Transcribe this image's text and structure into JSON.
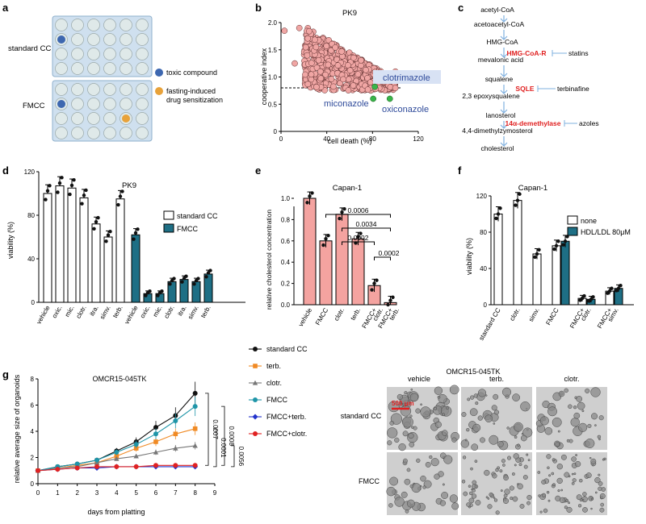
{
  "panel_a": {
    "letter": "a",
    "label_standard": "standard CC",
    "label_fmcc": "FMCC",
    "legend_toxic": "toxic compound",
    "legend_fasting_1": "fasting-induced",
    "legend_fasting_2": "drug sensitization",
    "colors": {
      "well": "#dfe9e9",
      "plate": "#cfe0ef",
      "toxic": "#3d67b0",
      "fasting": "#e8a23a"
    }
  },
  "panel_b": {
    "letter": "b",
    "chart_data": {
      "type": "scatter",
      "title": "PK9",
      "xlabel": "cell death (%)",
      "ylabel": "cooperative index",
      "xlim": [
        0,
        120
      ],
      "ylim": [
        0,
        2
      ],
      "xticks": [
        "0",
        "40",
        "80",
        "120"
      ],
      "yticks": [
        "0",
        "0.5",
        "1.0",
        "1.5",
        "2.0"
      ],
      "threshold": 0.8,
      "highlighted": [
        {
          "name": "clotrimazole",
          "x": 82,
          "y": 0.82
        },
        {
          "name": "miconazole",
          "x": 82,
          "y": 0.6
        },
        {
          "name": "oxiconazole",
          "x": 93,
          "y": 0.6
        }
      ]
    }
  },
  "panel_c": {
    "letter": "c",
    "nodes": [
      "acetyl-CoA",
      "acetoacetyl-CoA",
      "HMG-CoA",
      "mevalonic acid",
      "squalene",
      "2,3 epoxysqualene",
      "lanosterol",
      "4,4-dimethylzymosterol",
      "cholesterol"
    ],
    "enzymes": [
      "HMG-CoA-R",
      "SQLE",
      "14α-demethylase"
    ],
    "inhibitors": [
      "statins",
      "terbinafine",
      "azoles"
    ]
  },
  "panel_d": {
    "letter": "d",
    "chart_data": {
      "type": "bar",
      "title": "PK9",
      "ylabel": "viability (%)",
      "ylim": [
        0,
        120
      ],
      "yticks": [
        "0",
        "40",
        "80",
        "120"
      ],
      "categories": [
        "vehicle",
        "oxic.",
        "mic.",
        "clotr.",
        "itra.",
        "simv.",
        "terb.",
        "vehicle",
        "oxic.",
        "mic.",
        "clotr.",
        "itra.",
        "simv.",
        "terb."
      ],
      "values": [
        100,
        107,
        105,
        96,
        72,
        60,
        95,
        62,
        8,
        8,
        19,
        21,
        19,
        26
      ],
      "groups": [
        "standard CC",
        "standard CC",
        "standard CC",
        "standard CC",
        "standard CC",
        "standard CC",
        "standard CC",
        "FMCC",
        "FMCC",
        "FMCC",
        "FMCC",
        "FMCC",
        "FMCC",
        "FMCC"
      ],
      "legend": [
        "standard CC",
        "FMCC"
      ]
    }
  },
  "panel_e": {
    "letter": "e",
    "chart_data": {
      "type": "bar",
      "title": "Capan-1",
      "ylabel": "relative cholesterol concentration",
      "ylim": [
        0,
        1.0
      ],
      "yticks": [
        "0.0",
        "0.2",
        "0.4",
        "0.6",
        "0.8",
        "1.0"
      ],
      "categories": [
        "vehicle",
        "FMCC",
        "clotr.",
        "terb.",
        "FMCC+\nclotr.",
        "FMCC+\nterb."
      ],
      "category_lines": [
        [
          "vehicle"
        ],
        [
          "FMCC"
        ],
        [
          "clotr."
        ],
        [
          "terb."
        ],
        [
          "FMCC+",
          "clotr."
        ],
        [
          "FMCC+",
          "terb."
        ]
      ],
      "values": [
        1.0,
        0.6,
        0.85,
        0.62,
        0.18,
        0.02
      ],
      "pvalues": [
        "0.0006",
        "0.0034",
        "0.0002",
        "0.0002"
      ]
    }
  },
  "panel_f": {
    "letter": "f",
    "chart_data": {
      "type": "bar",
      "title": "Capan-1",
      "ylabel": "viability (%)",
      "ylim": [
        0,
        120
      ],
      "yticks": [
        "0",
        "40",
        "80",
        "120"
      ],
      "categories": [
        "standard CC",
        "clotr.",
        "simv.",
        "FMCC",
        "FMCC+\nclotr.",
        "FMCC+\nsimv."
      ],
      "category_lines": [
        [
          "standard CC"
        ],
        [
          "clotr."
        ],
        [
          "simv."
        ],
        [
          "FMCC"
        ],
        [
          "FMCC+",
          "clotr."
        ],
        [
          "FMCC+",
          "simv."
        ]
      ],
      "series": [
        {
          "name": "none",
          "values": [
            100,
            115,
            56,
            65,
            7,
            15
          ]
        },
        {
          "name": "HDL/LDL 80μM",
          "values": [
            null,
            null,
            null,
            70,
            6,
            18
          ]
        }
      ]
    }
  },
  "panel_g": {
    "letter": "g",
    "chart_data": {
      "type": "line",
      "title": "OMCR15-045TK",
      "xlabel": "days from platting",
      "ylabel": "relative average size of organoids",
      "xlim": [
        0,
        9
      ],
      "ylim": [
        0,
        8
      ],
      "xticks": [
        "0",
        "1",
        "2",
        "3",
        "4",
        "5",
        "6",
        "7",
        "8",
        "9"
      ],
      "yticks": [
        "0",
        "2",
        "4",
        "6",
        "8"
      ],
      "x": [
        0,
        1,
        2,
        3,
        4,
        5,
        6,
        7,
        8
      ],
      "series": [
        {
          "name": "standard CC",
          "values": [
            1.0,
            1.3,
            1.5,
            1.8,
            2.5,
            3.2,
            4.3,
            5.2,
            6.9
          ]
        },
        {
          "name": "terb.",
          "values": [
            1.0,
            1.2,
            1.4,
            1.6,
            2.1,
            2.7,
            3.2,
            3.8,
            4.2
          ]
        },
        {
          "name": "clotr.",
          "values": [
            1.0,
            1.2,
            1.3,
            1.6,
            1.9,
            2.1,
            2.4,
            2.7,
            2.9
          ]
        },
        {
          "name": "FMCC",
          "values": [
            1.0,
            1.3,
            1.5,
            1.8,
            2.4,
            3.0,
            3.8,
            4.8,
            5.9
          ]
        },
        {
          "name": "FMCC+terb.",
          "values": [
            1.0,
            1.1,
            1.2,
            1.2,
            1.3,
            1.3,
            1.3,
            1.3,
            1.3
          ]
        },
        {
          "name": "FMCC+clotr.",
          "values": [
            1.0,
            1.1,
            1.2,
            1.3,
            1.3,
            1.3,
            1.4,
            1.4,
            1.4
          ]
        }
      ],
      "pvalues": [
        "0.0007",
        "0.0008",
        "0.0001",
        "0.0056"
      ],
      "colors": [
        "#111111",
        "#f08a24",
        "#777777",
        "#1f95a8",
        "#2233cc",
        "#e02222"
      ],
      "markers": [
        "circle",
        "square",
        "triangle",
        "circle",
        "diamond",
        "circle"
      ]
    },
    "micro": {
      "title": "OMCR15-045TK",
      "cols": [
        "vehicle",
        "terb.",
        "clotr."
      ],
      "rows": [
        "standard CC",
        "FMCC"
      ],
      "scale": "500 μm"
    }
  }
}
